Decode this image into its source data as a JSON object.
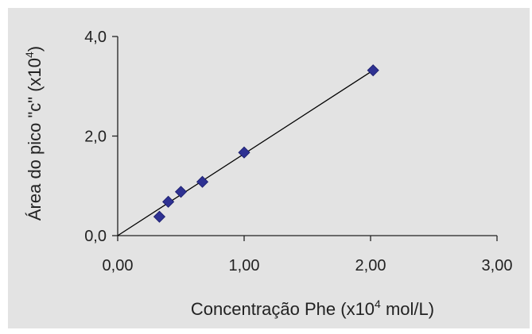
{
  "chart_data": {
    "type": "scatter",
    "title": "",
    "xlabel": {
      "pre": "Concentração Phe (x10",
      "sup": "4",
      "post": " mol/L)"
    },
    "ylabel": {
      "pre": "Área do pico \"c\"  (x10",
      "sup": "4",
      "post": ")"
    },
    "xlim": [
      0,
      3
    ],
    "ylim": [
      0,
      4
    ],
    "xticks": [
      0,
      1,
      2,
      3
    ],
    "xtick_labels": [
      "0,00",
      "1,00",
      "2,00",
      "3,00"
    ],
    "yticks": [
      0,
      2,
      4
    ],
    "ytick_labels": [
      "0,0",
      "2,0",
      "4,0"
    ],
    "grid": false,
    "marker": "diamond",
    "marker_color": "#2e3192",
    "line_color": "#000000",
    "background_color": "#e3e3e3",
    "points": [
      {
        "x": 0.33,
        "y": 0.38
      },
      {
        "x": 0.4,
        "y": 0.68
      },
      {
        "x": 0.5,
        "y": 0.88
      },
      {
        "x": 0.67,
        "y": 1.08
      },
      {
        "x": 1.0,
        "y": 1.67
      },
      {
        "x": 2.02,
        "y": 3.32
      }
    ],
    "trendline": {
      "x": [
        0.0,
        2.02
      ],
      "y": [
        0.0,
        3.32
      ]
    }
  }
}
